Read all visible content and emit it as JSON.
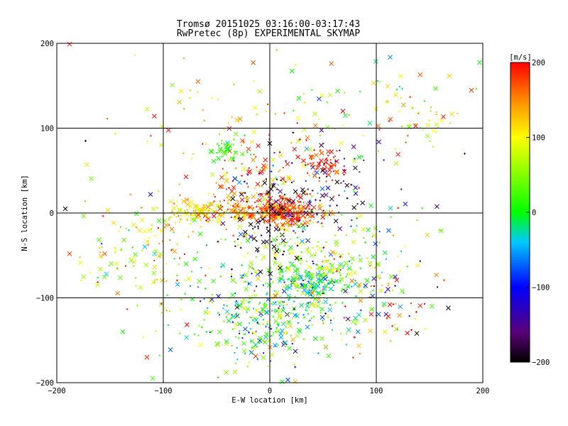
{
  "chart_data": {
    "type": "scatter",
    "title": "Tromsø 20151025 03:16:00-03:17:43",
    "subtitle": "RwPretec (8p) EXPERIMENTAL SKYMAP",
    "xlabel": "E-W location [km]",
    "ylabel": "N-S location [km]",
    "xlim": [
      -200,
      200
    ],
    "ylim": [
      -200,
      200
    ],
    "xticks": [
      -200,
      -100,
      0,
      100,
      200
    ],
    "yticks": [
      -200,
      -100,
      0,
      100,
      200
    ],
    "grid": true,
    "colorbar": {
      "label": "[m/s]",
      "min": -200,
      "max": 200,
      "ticks": [
        200,
        100,
        0,
        -100,
        -200
      ],
      "placement": "right"
    },
    "markers": [
      "x",
      "+",
      "dot"
    ],
    "clusters": [
      {
        "x": 15,
        "y": 0,
        "sx": 14,
        "sy": 8,
        "n": 200,
        "v": 185,
        "vs": 20
      },
      {
        "x": -20,
        "y": 5,
        "sx": 25,
        "sy": 10,
        "n": 170,
        "v": 150,
        "vs": 40
      },
      {
        "x": -70,
        "y": 0,
        "sx": 18,
        "sy": 8,
        "n": 90,
        "v": 110,
        "vs": 20
      },
      {
        "x": 50,
        "y": 60,
        "sx": 10,
        "sy": 8,
        "n": 60,
        "v": 190,
        "vs": 20
      },
      {
        "x": 0,
        "y": 40,
        "sx": 30,
        "sy": 28,
        "n": 130,
        "v": 160,
        "vs": 50
      },
      {
        "x": 35,
        "y": 30,
        "sx": 35,
        "sy": 30,
        "n": 110,
        "v": -150,
        "vs": 60
      },
      {
        "x": -40,
        "y": 75,
        "sx": 8,
        "sy": 6,
        "n": 40,
        "v": 15,
        "vs": 20
      },
      {
        "x": 40,
        "y": -80,
        "sx": 20,
        "sy": 12,
        "n": 170,
        "v": -5,
        "vs": 40
      },
      {
        "x": 10,
        "y": -120,
        "sx": 35,
        "sy": 30,
        "n": 240,
        "v": 10,
        "vs": 70
      },
      {
        "x": -20,
        "y": -130,
        "sx": 35,
        "sy": 25,
        "n": 120,
        "v": 0,
        "vs": 70
      },
      {
        "x": 25,
        "y": -50,
        "sx": 30,
        "sy": 25,
        "n": 130,
        "v": 60,
        "vs": 40
      },
      {
        "x": 90,
        "y": -60,
        "sx": 30,
        "sy": 40,
        "n": 110,
        "v": 0,
        "vs": 120
      },
      {
        "x": -100,
        "y": -70,
        "sx": 40,
        "sy": 45,
        "n": 110,
        "v": 80,
        "vs": 70
      },
      {
        "x": -130,
        "y": -30,
        "sx": 30,
        "sy": 30,
        "n": 55,
        "v": 90,
        "vs": 50
      },
      {
        "x": 80,
        "y": 120,
        "sx": 70,
        "sy": 30,
        "n": 90,
        "v": 80,
        "vs": 80
      },
      {
        "x": -40,
        "y": 130,
        "sx": 50,
        "sy": 45,
        "n": 40,
        "v": 130,
        "vs": 50
      },
      {
        "x": 140,
        "y": 110,
        "sx": 15,
        "sy": 20,
        "n": 25,
        "v": 90,
        "vs": 40
      },
      {
        "x": 105,
        "y": -100,
        "sx": 20,
        "sy": 30,
        "n": 45,
        "v": 150,
        "vs": 60
      },
      {
        "x": 0,
        "y": -20,
        "sx": 20,
        "sy": 30,
        "n": 70,
        "v": -200,
        "vs": 10
      }
    ],
    "extra_points": [
      {
        "x": -192,
        "y": 5,
        "v": -200,
        "m": "x"
      },
      {
        "x": -173,
        "y": 85,
        "v": -200,
        "m": "+"
      },
      {
        "x": -188,
        "y": -48,
        "v": 180,
        "m": "x"
      },
      {
        "x": -172,
        "y": 57,
        "v": 110,
        "m": "x"
      },
      {
        "x": -112,
        "y": 22,
        "v": -110,
        "m": "x"
      },
      {
        "x": 161,
        "y": -21,
        "v": 40,
        "m": "x"
      },
      {
        "x": 183,
        "y": 70,
        "v": -130,
        "m": "+"
      },
      {
        "x": 138,
        "y": -142,
        "v": -200,
        "m": "x"
      },
      {
        "x": -188,
        "y": 199,
        "v": 190,
        "m": "x"
      },
      {
        "x": -110,
        "y": -195,
        "v": 30,
        "m": "x"
      },
      {
        "x": -175,
        "y": -75,
        "v": 60,
        "m": "x"
      },
      {
        "x": -155,
        "y": -48,
        "v": 170,
        "m": "x"
      },
      {
        "x": 0,
        "y": 82,
        "v": -200,
        "m": "x"
      }
    ]
  }
}
